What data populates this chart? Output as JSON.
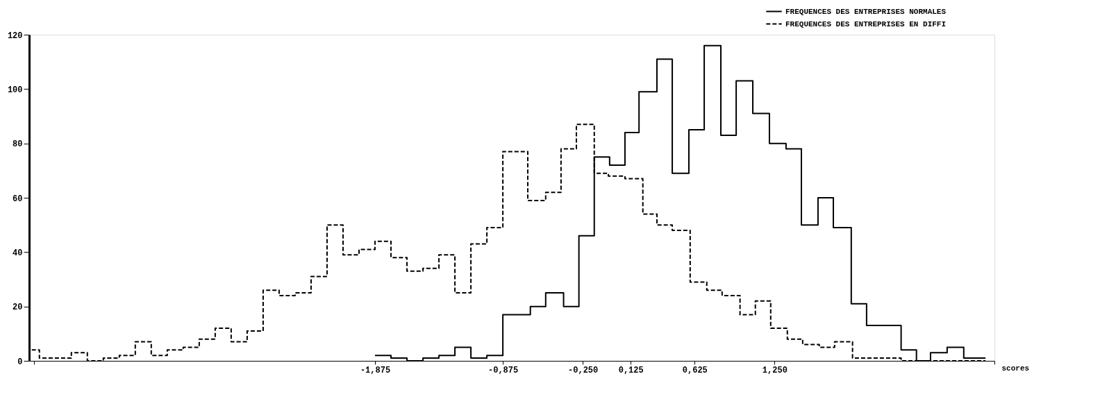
{
  "chart_data": {
    "type": "step",
    "xlabel": "scores",
    "xlim": [
      -4.58,
      2.97
    ],
    "ylim": [
      0,
      120
    ],
    "xticks": [
      {
        "value": -4.54,
        "label": null
      },
      {
        "value": -1.875,
        "label": "-1,875"
      },
      {
        "value": -0.875,
        "label": "-0,875"
      },
      {
        "value": -0.25,
        "label": "-0,250"
      },
      {
        "value": 0.125,
        "label": "0,125"
      },
      {
        "value": 0.625,
        "label": "0,625"
      },
      {
        "value": 1.25,
        "label": "1,250"
      },
      {
        "value": 2.97,
        "label": null
      }
    ],
    "yticks": [
      0,
      20,
      40,
      60,
      80,
      100,
      120
    ],
    "grid": false,
    "legend": "top right",
    "series": [
      {
        "name": "FREQUENCES DES ENTREPRISES NORMALES",
        "color": "#000000",
        "line_style": "solid",
        "x": [
          -1.875,
          -1.75,
          -1.625,
          -1.5,
          -1.375,
          -1.25,
          -1.125,
          -1.0,
          -0.875,
          -0.66,
          -0.54,
          -0.4,
          -0.28,
          -0.16,
          -0.04,
          0.08,
          0.19,
          0.33,
          0.45,
          0.58,
          0.7,
          0.83,
          0.95,
          1.08,
          1.21,
          1.34,
          1.46,
          1.59,
          1.71,
          1.85,
          1.97,
          2.24,
          2.36,
          2.47,
          2.6,
          2.73,
          2.9
        ],
        "values": [
          2,
          1,
          0,
          1,
          2,
          5,
          1,
          2,
          17,
          20,
          25,
          20,
          46,
          75,
          72,
          84,
          99,
          111,
          69,
          85,
          116,
          83,
          103,
          91,
          80,
          78,
          50,
          60,
          49,
          21,
          13,
          4,
          0,
          3,
          5,
          1,
          1
        ]
      },
      {
        "name": "FREQUENCES DES ENTREPRISES EN DIFFI",
        "color": "#000000",
        "line_style": "dashed",
        "x": [
          -4.56,
          -4.5,
          -4.25,
          -4.125,
          -4.0,
          -3.875,
          -3.75,
          -3.625,
          -3.5,
          -3.375,
          -3.25,
          -3.125,
          -3.0,
          -2.875,
          -2.75,
          -2.625,
          -2.5,
          -2.375,
          -2.25,
          -2.125,
          -2.0,
          -1.875,
          -1.75,
          -1.625,
          -1.5,
          -1.375,
          -1.25,
          -1.125,
          -1.0,
          -0.875,
          -0.68,
          -0.54,
          -0.42,
          -0.3,
          -0.16,
          -0.05,
          0.08,
          0.22,
          0.33,
          0.45,
          0.59,
          0.72,
          0.84,
          0.98,
          1.1,
          1.22,
          1.35,
          1.47,
          1.6,
          1.72,
          1.86,
          2.24,
          2.9
        ],
        "values": [
          4,
          1,
          3,
          0,
          1,
          2,
          7,
          2,
          4,
          5,
          8,
          12,
          7,
          11,
          26,
          24,
          25,
          31,
          50,
          39,
          41,
          44,
          38,
          33,
          34,
          39,
          25,
          43,
          49,
          77,
          59,
          62,
          78,
          87,
          69,
          68,
          67,
          54,
          50,
          48,
          29,
          26,
          24,
          17,
          22,
          12,
          8,
          6,
          5,
          7,
          1,
          0,
          0
        ]
      }
    ]
  }
}
